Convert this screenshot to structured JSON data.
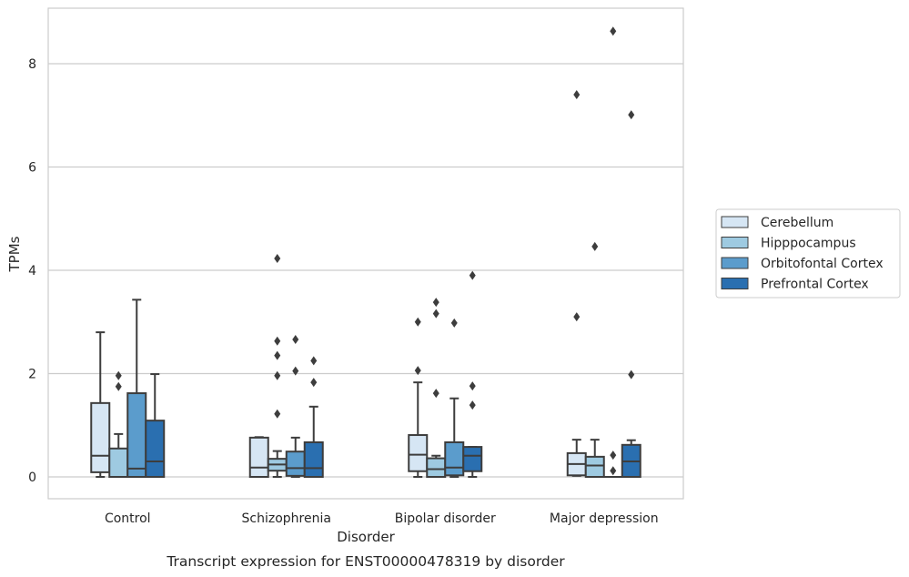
{
  "chart_data": {
    "type": "box",
    "caption": "Transcript expression for ENST00000478319 by disorder",
    "xlabel": "Disorder",
    "ylabel": "TPMs",
    "ylim": [
      -0.42,
      9.1
    ],
    "yticks": [
      0,
      2,
      4,
      6,
      8
    ],
    "grid": "horizontal",
    "legend_position": "right",
    "categories": [
      "Control",
      "Schizophrenia",
      "Bipolar disorder",
      "Major depression"
    ],
    "series": [
      {
        "name": "Cerebellum",
        "color": "#d6e6f4",
        "boxes": [
          {
            "whisker_low": 0.0,
            "q1": 0.09,
            "median": 0.41,
            "q3": 1.43,
            "whisker_high": 2.8,
            "outliers": []
          },
          {
            "whisker_low": 0.0,
            "q1": 0.0,
            "median": 0.18,
            "q3": 0.76,
            "whisker_high": 0.77,
            "outliers": []
          },
          {
            "whisker_low": 0.0,
            "q1": 0.11,
            "median": 0.43,
            "q3": 0.81,
            "whisker_high": 1.83,
            "outliers": [
              2.06,
              3.0
            ]
          },
          {
            "whisker_low": 0.02,
            "q1": 0.03,
            "median": 0.25,
            "q3": 0.46,
            "whisker_high": 0.72,
            "outliers": [
              3.1,
              7.4
            ]
          }
        ]
      },
      {
        "name": "Hipppocampus",
        "color": "#9ecae1",
        "boxes": [
          {
            "whisker_low": 0.0,
            "q1": 0.0,
            "median": 0.0,
            "q3": 0.55,
            "whisker_high": 0.83,
            "outliers": [
              1.75,
              1.96
            ]
          },
          {
            "whisker_low": 0.0,
            "q1": 0.12,
            "median": 0.24,
            "q3": 0.35,
            "whisker_high": 0.5,
            "outliers": [
              1.22,
              1.96,
              2.35,
              2.63,
              4.23
            ]
          },
          {
            "whisker_low": 0.0,
            "q1": 0.0,
            "median": 0.15,
            "q3": 0.36,
            "whisker_high": 0.41,
            "outliers": [
              1.62,
              3.16,
              3.38
            ]
          },
          {
            "whisker_low": 0.0,
            "q1": 0.0,
            "median": 0.22,
            "q3": 0.39,
            "whisker_high": 0.72,
            "outliers": [
              4.46
            ]
          }
        ]
      },
      {
        "name": "Orbitofontal Cortex",
        "color": "#5b9ccc",
        "boxes": [
          {
            "whisker_low": 0.0,
            "q1": 0.0,
            "median": 0.16,
            "q3": 1.62,
            "whisker_high": 3.43,
            "outliers": []
          },
          {
            "whisker_low": 0.0,
            "q1": 0.02,
            "median": 0.17,
            "q3": 0.49,
            "whisker_high": 0.76,
            "outliers": [
              2.05,
              2.66
            ]
          },
          {
            "whisker_low": 0.0,
            "q1": 0.03,
            "median": 0.18,
            "q3": 0.67,
            "whisker_high": 1.52,
            "outliers": [
              2.98
            ]
          },
          {
            "whisker_low": 0.0,
            "q1": 0.0,
            "median": 0.0,
            "q3": 0.0,
            "whisker_high": 0.0,
            "outliers": [
              0.12,
              0.42,
              8.63
            ]
          }
        ]
      },
      {
        "name": "Prefrontal Cortex",
        "color": "#2a6fb0",
        "boxes": [
          {
            "whisker_low": 0.0,
            "q1": 0.0,
            "median": 0.3,
            "q3": 1.09,
            "whisker_high": 1.99,
            "outliers": []
          },
          {
            "whisker_low": 0.0,
            "q1": 0.0,
            "median": 0.17,
            "q3": 0.67,
            "whisker_high": 1.36,
            "outliers": [
              1.83,
              2.25
            ]
          },
          {
            "whisker_low": 0.0,
            "q1": 0.11,
            "median": 0.41,
            "q3": 0.58,
            "whisker_high": 0.58,
            "outliers": [
              1.39,
              1.76,
              3.9
            ]
          },
          {
            "whisker_low": 0.0,
            "q1": 0.0,
            "median": 0.3,
            "q3": 0.62,
            "whisker_high": 0.71,
            "outliers": [
              1.98,
              7.01
            ]
          }
        ]
      }
    ]
  }
}
